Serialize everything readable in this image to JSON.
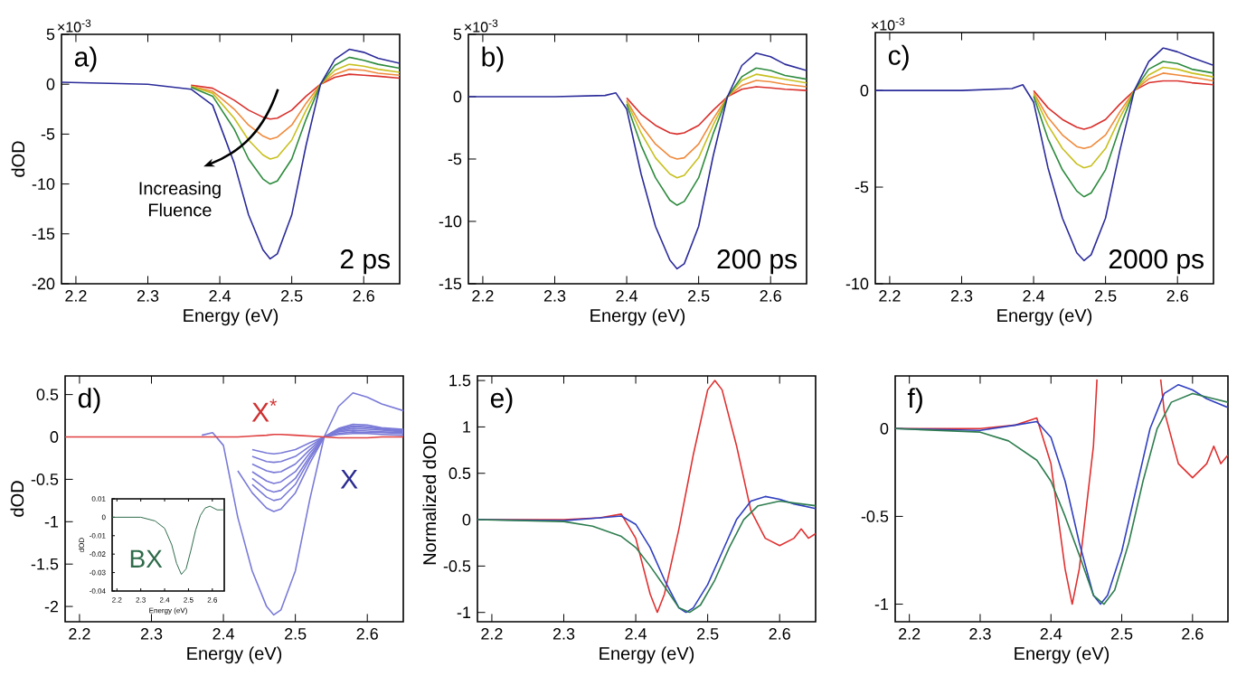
{
  "chart_data": [
    {
      "type": "line",
      "xlabel": "Energy (eV)",
      "ylabel": "dOD",
      "xlim": [
        2.18,
        2.65
      ],
      "ylim": [
        -20,
        5
      ],
      "xticks": [
        2.2,
        2.3,
        2.4,
        2.5,
        2.6
      ],
      "yticks": [
        -20,
        -15,
        -10,
        -5,
        0,
        5
      ],
      "annotations": [
        "a)",
        "Increasing Fluence",
        "2 ps",
        "×10$^{-3}$"
      ],
      "x": [
        2.18,
        2.3,
        2.36,
        2.39,
        2.42,
        2.44,
        2.46,
        2.47,
        2.48,
        2.5,
        2.52,
        2.54,
        2.56,
        2.58,
        2.6,
        2.62,
        2.65
      ],
      "series": [
        {
          "color": "#d9302c",
          "values": [
            null,
            null,
            -0.1,
            -0.4,
            -1.6,
            -2.6,
            -3.3,
            -3.5,
            -3.4,
            -2.6,
            -1.2,
            0,
            0.7,
            1,
            0.9,
            0.8,
            0.6
          ]
        },
        {
          "color": "#f08a3c",
          "values": [
            null,
            null,
            -0.2,
            -0.7,
            -2.5,
            -4.1,
            -5.2,
            -5.5,
            -5.3,
            -4.1,
            -1.9,
            0,
            1,
            1.5,
            1.4,
            1.1,
            0.9
          ]
        },
        {
          "color": "#c8c020",
          "values": [
            null,
            null,
            -0.2,
            -0.9,
            -3.4,
            -5.6,
            -7.1,
            -7.5,
            -7.3,
            -5.6,
            -2.6,
            0,
            1.4,
            2,
            1.8,
            1.5,
            1.2
          ]
        },
        {
          "color": "#2e8b3e",
          "values": [
            null,
            null,
            -0.3,
            -1.2,
            -4.5,
            -7.5,
            -9.5,
            -10,
            -9.7,
            -7.5,
            -3.5,
            0,
            1.9,
            2.7,
            2.4,
            2,
            1.6
          ]
        },
        {
          "color": "#2b2b9a",
          "values": [
            0.2,
            0,
            -0.5,
            -2.1,
            -7.9,
            -13.1,
            -16.6,
            -17.5,
            -17,
            -13.1,
            -6.1,
            0,
            2.5,
            3.5,
            3.2,
            2.6,
            2.1
          ]
        }
      ]
    },
    {
      "type": "line",
      "xlabel": "Energy (eV)",
      "xlim": [
        2.18,
        2.65
      ],
      "ylim": [
        -15,
        5
      ],
      "xticks": [
        2.2,
        2.3,
        2.4,
        2.5,
        2.6
      ],
      "yticks": [
        -15,
        -10,
        -5,
        0,
        5
      ],
      "annotations": [
        "b)",
        "200 ps",
        "×10$^{-3}$"
      ],
      "x": [
        2.18,
        2.3,
        2.37,
        2.385,
        2.4,
        2.42,
        2.44,
        2.46,
        2.47,
        2.48,
        2.5,
        2.52,
        2.54,
        2.56,
        2.58,
        2.6,
        2.62,
        2.65
      ],
      "series": [
        {
          "color": "#d9302c",
          "values": [
            null,
            null,
            null,
            null,
            -0.1,
            -1.4,
            -2.3,
            -2.9,
            -3,
            -2.9,
            -2.3,
            -1.1,
            0,
            0.6,
            0.8,
            0.7,
            0.6,
            0.5
          ]
        },
        {
          "color": "#f08a3c",
          "values": [
            null,
            null,
            null,
            null,
            -0.3,
            -2.3,
            -3.8,
            -4.8,
            -5,
            -4.9,
            -3.8,
            -1.8,
            0,
            0.9,
            1.3,
            1.2,
            1,
            0.8
          ]
        },
        {
          "color": "#c8c020",
          "values": [
            null,
            null,
            null,
            null,
            -0.4,
            -2.9,
            -4.9,
            -6.2,
            -6.5,
            -6.3,
            -4.9,
            -2.3,
            0,
            1.3,
            1.8,
            1.6,
            1.4,
            1.1
          ]
        },
        {
          "color": "#2e8b3e",
          "values": [
            null,
            null,
            null,
            null,
            -0.6,
            -3.9,
            -6.5,
            -8.3,
            -8.7,
            -8.4,
            -6.5,
            -3,
            0,
            1.6,
            2.3,
            2.1,
            1.7,
            1.4
          ]
        },
        {
          "color": "#2b2b9a",
          "values": [
            0,
            0,
            0.1,
            0.3,
            -1,
            -6.2,
            -10.4,
            -13.1,
            -13.8,
            -13.4,
            -10.4,
            -4.8,
            0,
            2.5,
            3.5,
            3.2,
            2.6,
            2.1
          ]
        }
      ]
    },
    {
      "type": "line",
      "xlabel": "Energy (eV)",
      "xlim": [
        2.18,
        2.65
      ],
      "ylim": [
        -10,
        3
      ],
      "xticks": [
        2.2,
        2.3,
        2.4,
        2.5,
        2.6
      ],
      "yticks": [
        -10,
        -5,
        0
      ],
      "annotations": [
        "c)",
        "2000 ps",
        "×10$^{-3}$"
      ],
      "x": [
        2.18,
        2.3,
        2.37,
        2.385,
        2.4,
        2.42,
        2.44,
        2.46,
        2.47,
        2.48,
        2.5,
        2.52,
        2.54,
        2.56,
        2.58,
        2.6,
        2.62,
        2.65
      ],
      "series": [
        {
          "color": "#d9302c",
          "values": [
            null,
            null,
            null,
            null,
            0,
            -0.9,
            -1.5,
            -1.9,
            -2,
            -1.9,
            -1.5,
            -0.7,
            0,
            0.4,
            0.5,
            0.5,
            0.4,
            0.3
          ]
        },
        {
          "color": "#f08a3c",
          "values": [
            null,
            null,
            null,
            null,
            -0.1,
            -1.4,
            -2.3,
            -2.9,
            -3,
            -2.9,
            -2.3,
            -1.1,
            0,
            0.6,
            0.9,
            0.8,
            0.7,
            0.5
          ]
        },
        {
          "color": "#c8c020",
          "values": [
            null,
            null,
            null,
            null,
            -0.2,
            -1.8,
            -3,
            -3.8,
            -4,
            -3.9,
            -3,
            -1.4,
            0,
            0.8,
            1.2,
            1.1,
            0.9,
            0.7
          ]
        },
        {
          "color": "#2e8b3e",
          "values": [
            null,
            null,
            null,
            null,
            -0.3,
            -2.5,
            -4.1,
            -5.2,
            -5.5,
            -5.3,
            -4.1,
            -1.9,
            0,
            1.1,
            1.5,
            1.4,
            1.1,
            0.9
          ]
        },
        {
          "color": "#2b2b9a",
          "values": [
            0,
            0,
            0.1,
            0.3,
            -0.6,
            -4,
            -6.6,
            -8.4,
            -8.8,
            -8.5,
            -6.6,
            -3.1,
            0,
            1.5,
            2.2,
            2,
            1.7,
            1.3
          ]
        }
      ]
    },
    {
      "type": "line",
      "xlabel": "Energy (eV)",
      "ylabel": "dOD",
      "xlim": [
        2.18,
        2.65
      ],
      "ylim": [
        -2.18,
        0.72
      ],
      "xticks": [
        2.2,
        2.3,
        2.4,
        2.5,
        2.6
      ],
      "yticks": [
        -2,
        -1.5,
        -1,
        -0.5,
        0,
        0.5
      ],
      "annotations": [
        "d)",
        "X$^{*}$",
        "X"
      ],
      "x": [
        2.18,
        2.3,
        2.37,
        2.385,
        2.4,
        2.42,
        2.44,
        2.46,
        2.47,
        2.48,
        2.5,
        2.52,
        2.54,
        2.56,
        2.58,
        2.6,
        2.62,
        2.65
      ],
      "series": [
        {
          "color": "#7a7ad8",
          "values": [
            null,
            null,
            0.02,
            0.05,
            -0.1,
            -0.95,
            -1.58,
            -2,
            -2.1,
            -2.04,
            -1.58,
            -0.74,
            0,
            0.36,
            0.52,
            0.47,
            0.39,
            0.31
          ]
        },
        {
          "color": "#7a7ad8",
          "values": [
            null,
            null,
            null,
            null,
            null,
            -0.4,
            -0.66,
            -0.84,
            -0.88,
            -0.85,
            -0.66,
            -0.31,
            0,
            0.1,
            0.15,
            0.14,
            0.11,
            0.09
          ]
        },
        {
          "color": "#7a7ad8",
          "values": [
            null,
            null,
            null,
            null,
            null,
            null,
            -0.56,
            -0.71,
            -0.75,
            -0.73,
            -0.56,
            -0.26,
            0,
            0.09,
            0.13,
            0.12,
            0.1,
            0.08
          ]
        },
        {
          "color": "#7a7ad8",
          "values": [
            null,
            null,
            null,
            null,
            null,
            null,
            -0.49,
            -0.62,
            -0.65,
            -0.63,
            -0.49,
            -0.23,
            0,
            0.08,
            0.12,
            0.11,
            0.09,
            0.07
          ]
        },
        {
          "color": "#7a7ad8",
          "values": [
            null,
            null,
            null,
            null,
            null,
            null,
            -0.41,
            -0.52,
            -0.55,
            -0.53,
            -0.41,
            -0.19,
            0,
            0.07,
            0.1,
            0.09,
            0.08,
            0.06
          ]
        },
        {
          "color": "#7a7ad8",
          "values": [
            null,
            null,
            null,
            null,
            null,
            null,
            -0.32,
            -0.4,
            -0.42,
            -0.41,
            -0.32,
            -0.15,
            0,
            0.06,
            0.08,
            0.07,
            0.06,
            0.05
          ]
        },
        {
          "color": "#7a7ad8",
          "values": [
            null,
            null,
            null,
            null,
            null,
            null,
            -0.23,
            -0.29,
            -0.3,
            -0.29,
            -0.23,
            -0.11,
            0,
            0.04,
            0.06,
            0.05,
            0.05,
            0.04
          ]
        },
        {
          "color": "#7a7ad8",
          "values": [
            null,
            null,
            null,
            null,
            null,
            null,
            -0.15,
            -0.19,
            -0.2,
            -0.19,
            -0.15,
            -0.07,
            0,
            0.03,
            0.04,
            0.04,
            0.03,
            0.02
          ]
        },
        {
          "color": "#e04040",
          "values": [
            0,
            0,
            0,
            0,
            0,
            0,
            0.01,
            0.02,
            0.03,
            0.03,
            0.02,
            0.01,
            0,
            -0.01,
            -0.01,
            -0.01,
            0,
            0
          ]
        }
      ]
    },
    {
      "type": "line",
      "xlabel": "Energy (eV)",
      "ylabel": "dOD",
      "xlim": [
        2.18,
        2.65
      ],
      "ylim": [
        -0.04,
        0.01
      ],
      "xticks": [
        2.2,
        2.3,
        2.4,
        2.5,
        2.6
      ],
      "yticks": [
        -0.04,
        -0.03,
        -0.02,
        -0.01,
        0,
        0.01
      ],
      "annotations": [
        "BX"
      ],
      "x": [
        2.18,
        2.3,
        2.36,
        2.4,
        2.43,
        2.45,
        2.47,
        2.49,
        2.51,
        2.53,
        2.55,
        2.57,
        2.59,
        2.62,
        2.65
      ],
      "series": [
        {
          "color": "#2e6b4a",
          "values": [
            0,
            0,
            -0.002,
            -0.006,
            -0.015,
            -0.025,
            -0.031,
            -0.028,
            -0.018,
            -0.007,
            0.001,
            0.005,
            0.006,
            0.004,
            0.004
          ]
        }
      ]
    },
    {
      "type": "line",
      "xlabel": "Energy (eV)",
      "ylabel": "Normalized dOD",
      "xlim": [
        2.18,
        2.65
      ],
      "ylim": [
        -1.1,
        1.55
      ],
      "xticks": [
        2.2,
        2.3,
        2.4,
        2.5,
        2.6
      ],
      "yticks": [
        -1,
        -0.5,
        0,
        0.5,
        1,
        1.5
      ],
      "annotations": [
        "e)"
      ],
      "series": [
        {
          "color": "#e03030",
          "x": [
            2.18,
            2.3,
            2.35,
            2.38,
            2.4,
            2.42,
            2.43,
            2.44,
            2.46,
            2.48,
            2.5,
            2.51,
            2.52,
            2.54,
            2.56,
            2.58,
            2.6,
            2.62,
            2.63,
            2.64,
            2.65
          ],
          "values": [
            0,
            0,
            0.02,
            0.06,
            -0.2,
            -0.8,
            -1,
            -0.8,
            -0.1,
            0.7,
            1.4,
            1.5,
            1.4,
            0.8,
            0.1,
            -0.2,
            -0.28,
            -0.2,
            -0.1,
            -0.2,
            -0.15
          ]
        },
        {
          "color": "#3040c0",
          "x": [
            2.18,
            2.3,
            2.35,
            2.38,
            2.4,
            2.42,
            2.44,
            2.46,
            2.47,
            2.48,
            2.5,
            2.52,
            2.54,
            2.56,
            2.58,
            2.6,
            2.62,
            2.65
          ],
          "values": [
            0,
            -0.01,
            0.02,
            0.04,
            -0.05,
            -0.3,
            -0.65,
            -0.95,
            -1,
            -0.95,
            -0.7,
            -0.35,
            0,
            0.2,
            0.25,
            0.22,
            0.17,
            0.12
          ]
        },
        {
          "color": "#2e7d4f",
          "x": [
            2.18,
            2.3,
            2.34,
            2.38,
            2.4,
            2.42,
            2.44,
            2.46,
            2.475,
            2.49,
            2.51,
            2.53,
            2.55,
            2.57,
            2.6,
            2.63,
            2.65
          ],
          "values": [
            0,
            -0.02,
            -0.07,
            -0.18,
            -0.3,
            -0.5,
            -0.72,
            -0.95,
            -1,
            -0.92,
            -0.65,
            -0.3,
            0,
            0.15,
            0.2,
            0.17,
            0.15
          ]
        }
      ]
    },
    {
      "type": "line",
      "xlabel": "Energy (eV)",
      "xlim": [
        2.18,
        2.65
      ],
      "ylim": [
        -1.1,
        0.3
      ],
      "xticks": [
        2.2,
        2.3,
        2.4,
        2.5,
        2.6
      ],
      "yticks": [
        -1,
        -0.5,
        0
      ],
      "annotations": [
        "f)"
      ],
      "series": [
        {
          "color": "#e03030",
          "x": [
            2.18,
            2.3,
            2.35,
            2.38,
            2.4,
            2.42,
            2.43,
            2.44,
            2.46,
            2.465,
            2.5,
            2.555,
            2.56,
            2.58,
            2.6,
            2.62,
            2.63,
            2.64,
            2.65
          ],
          "values": [
            0,
            0,
            0.02,
            0.06,
            -0.2,
            -0.8,
            -1,
            -0.8,
            -0.1,
            0.28,
            null,
            0.28,
            0.1,
            -0.2,
            -0.28,
            -0.2,
            -0.1,
            -0.2,
            -0.15
          ]
        },
        {
          "color": "#3040c0",
          "x": [
            2.18,
            2.3,
            2.35,
            2.38,
            2.4,
            2.42,
            2.44,
            2.46,
            2.47,
            2.48,
            2.5,
            2.52,
            2.54,
            2.56,
            2.58,
            2.6,
            2.62,
            2.65
          ],
          "values": [
            0,
            -0.01,
            0.02,
            0.04,
            -0.05,
            -0.3,
            -0.65,
            -0.95,
            -1,
            -0.95,
            -0.7,
            -0.35,
            0,
            0.2,
            0.25,
            0.22,
            0.17,
            0.12
          ]
        },
        {
          "color": "#2e7d4f",
          "x": [
            2.18,
            2.3,
            2.34,
            2.38,
            2.4,
            2.42,
            2.44,
            2.46,
            2.475,
            2.49,
            2.51,
            2.53,
            2.55,
            2.57,
            2.6,
            2.63,
            2.65
          ],
          "values": [
            0,
            -0.02,
            -0.07,
            -0.18,
            -0.3,
            -0.5,
            -0.72,
            -0.95,
            -1,
            -0.92,
            -0.65,
            -0.3,
            0,
            0.15,
            0.2,
            0.17,
            0.15
          ]
        }
      ]
    }
  ]
}
